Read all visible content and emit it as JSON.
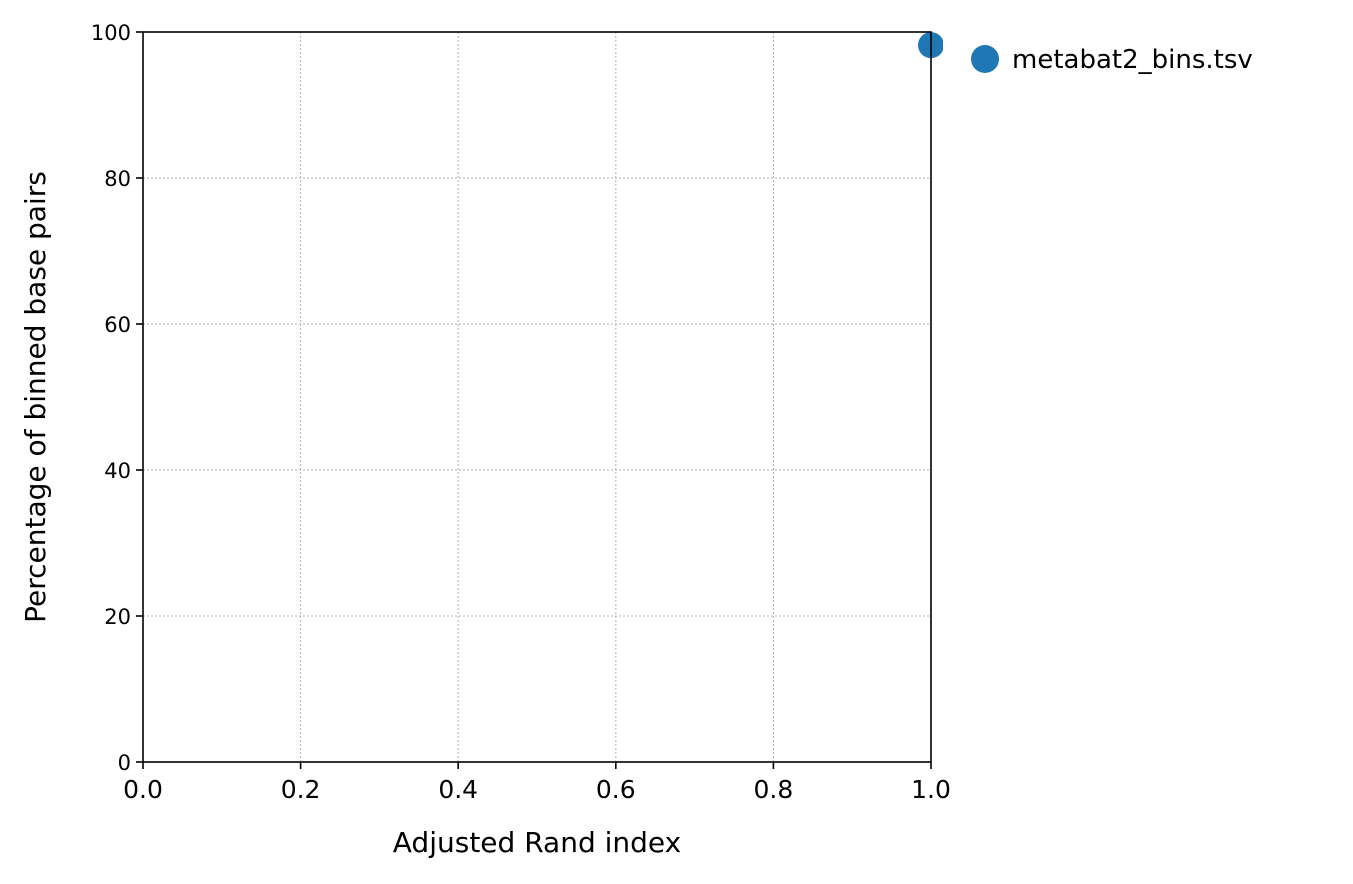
{
  "chart_data": {
    "type": "scatter",
    "xlabel": "Adjusted Rand index",
    "ylabel": "Percentage of binned base pairs",
    "xlim": [
      0.0,
      1.0
    ],
    "ylim": [
      0,
      100
    ],
    "xticks": [
      "0.0",
      "0.2",
      "0.4",
      "0.6",
      "0.8",
      "1.0"
    ],
    "yticks": [
      "0",
      "20",
      "40",
      "60",
      "80",
      "100"
    ],
    "grid": true,
    "legend_position": "outside-right-top",
    "series": [
      {
        "name": "metabat2_bins.tsv",
        "color": "#1f77b4",
        "points": [
          {
            "x": 1.0,
            "y": 98.2
          }
        ]
      }
    ]
  }
}
